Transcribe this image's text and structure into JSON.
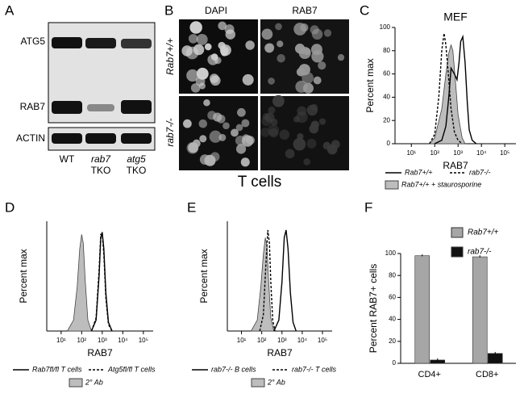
{
  "panels": {
    "A": {
      "letter": "A",
      "bands": [
        "ATG5",
        "RAB7",
        "ACTIN"
      ],
      "lanes": [
        [
          "WT"
        ],
        [
          "rab7",
          "TKO"
        ],
        [
          "atg5",
          "TKO"
        ]
      ]
    },
    "B": {
      "letter": "B",
      "columns": [
        "DAPI",
        "RAB7"
      ],
      "rows": [
        "Rab7+/+",
        "rab7-/-"
      ],
      "caption": "T cells"
    }
  },
  "chart_data": [
    {
      "panel": "C",
      "type": "line",
      "title": "MEF",
      "y_label": "Percent max",
      "x_label": "RAB7",
      "log_x": true,
      "xlim": [
        2,
        300000
      ],
      "xticks": [
        {
          "value": 10,
          "label": "10¹"
        },
        {
          "value": 100,
          "label": "10²"
        },
        {
          "value": 1000,
          "label": "10³"
        },
        {
          "value": 10000,
          "label": "10⁴"
        },
        {
          "value": 100000,
          "label": "10⁵"
        }
      ],
      "ylim": [
        0,
        100
      ],
      "yticks": [
        0,
        20,
        40,
        60,
        80,
        100
      ],
      "series": [
        {
          "name": "Rab7+/+",
          "color": "#000000",
          "fill": false,
          "dash": false,
          "x": [
            100,
            200,
            300,
            400,
            500,
            700,
            900,
            1100,
            1300,
            1600,
            2000,
            2500,
            3000,
            4000,
            6000
          ],
          "values": [
            0,
            3,
            15,
            40,
            65,
            60,
            55,
            70,
            88,
            92,
            70,
            35,
            12,
            3,
            0
          ]
        },
        {
          "name": "rab7-/-",
          "color": "#000000",
          "fill": false,
          "dash": true,
          "x": [
            60,
            100,
            150,
            200,
            250,
            300,
            400,
            500,
            700,
            1000,
            1500
          ],
          "values": [
            0,
            8,
            40,
            80,
            95,
            85,
            55,
            30,
            10,
            3,
            0
          ]
        },
        {
          "name": "Rab7+/+ + staurosporine",
          "color": "#bdbdbd",
          "fill": true,
          "dash": false,
          "x": [
            60,
            100,
            200,
            300,
            400,
            500,
            600,
            800,
            1000,
            1500,
            2000
          ],
          "values": [
            0,
            5,
            30,
            60,
            78,
            85,
            80,
            50,
            25,
            5,
            0
          ]
        }
      ]
    },
    {
      "panel": "D",
      "type": "line",
      "y_label": "Percent max",
      "x_label": "RAB7",
      "log_x": true,
      "xlim": [
        2,
        300000
      ],
      "xticks": [
        {
          "value": 10,
          "label": "10¹"
        },
        {
          "value": 100,
          "label": "10²"
        },
        {
          "value": 1000,
          "label": "10³"
        },
        {
          "value": 10000,
          "label": "10⁴"
        },
        {
          "value": 100000,
          "label": "10⁵"
        }
      ],
      "ylim": [
        0,
        100
      ],
      "series": [
        {
          "name": "Rab7fl/fl T cells",
          "color": "#000000",
          "fill": false,
          "dash": false,
          "x": [
            300,
            500,
            700,
            850,
            1000,
            1200,
            1500,
            2000,
            3000
          ],
          "values": [
            0,
            10,
            50,
            85,
            90,
            75,
            35,
            8,
            0
          ]
        },
        {
          "name": "Atg5fl/fl T cells",
          "color": "#000000",
          "fill": false,
          "dash": true,
          "x": [
            300,
            500,
            700,
            850,
            1000,
            1200,
            1500,
            2000,
            3000
          ],
          "values": [
            0,
            12,
            55,
            88,
            88,
            70,
            30,
            6,
            0
          ]
        },
        {
          "name": "2° Ab",
          "color": "#bdbdbd",
          "fill": true,
          "dash": false,
          "x": [
            20,
            40,
            60,
            80,
            100,
            120,
            150,
            200,
            300
          ],
          "values": [
            0,
            10,
            40,
            75,
            88,
            80,
            45,
            10,
            0
          ]
        }
      ]
    },
    {
      "panel": "E",
      "type": "line",
      "y_label": "Percent max",
      "x_label": "RAB7",
      "log_x": true,
      "xlim": [
        2,
        300000
      ],
      "xticks": [
        {
          "value": 10,
          "label": "10¹"
        },
        {
          "value": 100,
          "label": "10²"
        },
        {
          "value": 1000,
          "label": "10³"
        },
        {
          "value": 10000,
          "label": "10⁴"
        },
        {
          "value": 100000,
          "label": "10⁵"
        }
      ],
      "ylim": [
        0,
        100
      ],
      "series": [
        {
          "name": "rab7-/- B cells",
          "color": "#000000",
          "fill": false,
          "dash": false,
          "x": [
            400,
            700,
            1000,
            1300,
            1600,
            2000,
            2600,
            3500,
            5000
          ],
          "values": [
            0,
            10,
            45,
            85,
            92,
            75,
            35,
            8,
            0
          ]
        },
        {
          "name": "rab7-/- T cells",
          "color": "#000000",
          "fill": false,
          "dash": true,
          "x": [
            80,
            120,
            160,
            200,
            240,
            280,
            350,
            450
          ],
          "values": [
            0,
            15,
            60,
            92,
            80,
            45,
            10,
            0
          ]
        },
        {
          "name": "2° Ab",
          "color": "#bdbdbd",
          "fill": true,
          "dash": false,
          "x": [
            30,
            60,
            90,
            120,
            150,
            180,
            220,
            280,
            400
          ],
          "values": [
            0,
            10,
            40,
            70,
            85,
            78,
            45,
            12,
            0
          ]
        }
      ]
    },
    {
      "panel": "F",
      "type": "bar",
      "y_label": "Percent RAB7+ cells",
      "categories": [
        "CD4+",
        "CD8+"
      ],
      "ylim": [
        0,
        100
      ],
      "yticks": [
        0,
        20,
        40,
        60,
        80,
        100
      ],
      "series": [
        {
          "name": "Rab7+/+",
          "color": "#a6a6a6",
          "values": [
            98,
            97
          ],
          "errors": [
            0.5,
            0.6
          ]
        },
        {
          "name": "rab7-/-",
          "color": "#111111",
          "values": [
            3,
            9
          ],
          "errors": [
            0.8,
            0.6
          ]
        }
      ]
    }
  ]
}
